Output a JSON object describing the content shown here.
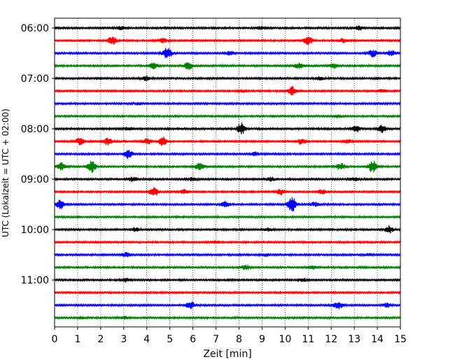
{
  "chart_data": {
    "type": "line",
    "title": "",
    "xlabel": "Zeit  [min]",
    "ylabel": "UTC (Lokalzeit = UTC + 02:00)",
    "xlim": [
      0,
      15
    ],
    "x_ticks": [
      0,
      1,
      2,
      3,
      4,
      5,
      6,
      7,
      8,
      9,
      10,
      11,
      12,
      13,
      14,
      15
    ],
    "x_tick_labels": [
      "0",
      "1",
      "2",
      "3",
      "4",
      "5",
      "6",
      "7",
      "8",
      "9",
      "10",
      "11",
      "12",
      "13",
      "14",
      "15"
    ],
    "y_tick_labels": [
      "06:00",
      "07:00",
      "08:00",
      "09:00",
      "10:00",
      "11:00"
    ],
    "row_minutes": 15,
    "grid_x": "dotted vertical lines at each minute",
    "color_cycle": [
      "#000000",
      "#ff0000",
      "#0000ff",
      "#008000"
    ],
    "rows": [
      {
        "start": "06:00",
        "color": "#000000",
        "events": [
          [
            2.9,
            0.25
          ],
          [
            8.9,
            0.2
          ],
          [
            13.2,
            0.25
          ]
        ]
      },
      {
        "start": "06:15",
        "color": "#ff0000",
        "events": [
          [
            2.5,
            0.6
          ],
          [
            4.7,
            0.3
          ],
          [
            11.0,
            0.6
          ],
          [
            12.5,
            0.25
          ]
        ]
      },
      {
        "start": "06:30",
        "color": "#0000ff",
        "events": [
          [
            4.9,
            0.8
          ],
          [
            7.6,
            0.3
          ],
          [
            13.8,
            0.5
          ],
          [
            14.6,
            0.4
          ]
        ]
      },
      {
        "start": "06:45",
        "color": "#008000",
        "events": [
          [
            4.3,
            0.4
          ],
          [
            5.8,
            0.5
          ],
          [
            10.6,
            0.4
          ],
          [
            12.1,
            0.35
          ]
        ]
      },
      {
        "start": "07:00",
        "color": "#000000",
        "events": [
          [
            4.0,
            0.3
          ],
          [
            11.5,
            0.25
          ]
        ]
      },
      {
        "start": "07:15",
        "color": "#ff0000",
        "events": [
          [
            8.1,
            0.2
          ],
          [
            10.3,
            0.6
          ],
          [
            14.2,
            0.2
          ]
        ]
      },
      {
        "start": "07:30",
        "color": "#0000ff",
        "events": [
          [
            3.6,
            0.15
          ]
        ]
      },
      {
        "start": "07:45",
        "color": "#008000",
        "events": [
          [
            12.3,
            0.2
          ]
        ]
      },
      {
        "start": "08:00",
        "color": "#000000",
        "events": [
          [
            8.1,
            0.8
          ],
          [
            13.1,
            0.4
          ],
          [
            14.2,
            0.5
          ],
          [
            3.2,
            0.2
          ]
        ]
      },
      {
        "start": "08:15",
        "color": "#ff0000",
        "events": [
          [
            1.1,
            0.5
          ],
          [
            2.3,
            0.5
          ],
          [
            4.0,
            0.4
          ],
          [
            4.7,
            0.6
          ],
          [
            10.7,
            0.4
          ],
          [
            12.7,
            0.3
          ]
        ]
      },
      {
        "start": "08:30",
        "color": "#0000ff",
        "events": [
          [
            3.2,
            0.6
          ],
          [
            8.7,
            0.25
          ]
        ]
      },
      {
        "start": "08:45",
        "color": "#008000",
        "events": [
          [
            0.3,
            0.5
          ],
          [
            1.6,
            0.8
          ],
          [
            6.3,
            0.5
          ],
          [
            12.4,
            0.5
          ],
          [
            13.8,
            0.8
          ]
        ]
      },
      {
        "start": "09:00",
        "color": "#000000",
        "events": [
          [
            3.4,
            0.3
          ],
          [
            6.0,
            0.25
          ],
          [
            9.4,
            0.25
          ],
          [
            13.0,
            0.25
          ]
        ]
      },
      {
        "start": "09:15",
        "color": "#ff0000",
        "events": [
          [
            4.3,
            0.6
          ],
          [
            5.6,
            0.3
          ],
          [
            9.8,
            0.4
          ],
          [
            11.6,
            0.3
          ]
        ]
      },
      {
        "start": "09:30",
        "color": "#0000ff",
        "events": [
          [
            0.25,
            0.6
          ],
          [
            7.4,
            0.35
          ],
          [
            10.3,
            1.0
          ],
          [
            11.3,
            0.3
          ]
        ]
      },
      {
        "start": "09:45",
        "color": "#008000",
        "events": []
      },
      {
        "start": "10:00",
        "color": "#000000",
        "events": [
          [
            3.5,
            0.25
          ],
          [
            9.3,
            0.2
          ],
          [
            14.5,
            0.5
          ]
        ]
      },
      {
        "start": "10:15",
        "color": "#ff0000",
        "events": [
          [
            7.0,
            0.15
          ]
        ]
      },
      {
        "start": "10:30",
        "color": "#0000ff",
        "events": [
          [
            3.1,
            0.3
          ],
          [
            9.1,
            0.2
          ],
          [
            13.6,
            0.2
          ]
        ]
      },
      {
        "start": "10:45",
        "color": "#008000",
        "events": [
          [
            8.3,
            0.3
          ],
          [
            11.2,
            0.25
          ]
        ]
      },
      {
        "start": "11:00",
        "color": "#000000",
        "events": [
          [
            3.1,
            0.25
          ],
          [
            10.8,
            0.2
          ]
        ]
      },
      {
        "start": "11:15",
        "color": "#ff0000",
        "events": []
      },
      {
        "start": "11:30",
        "color": "#0000ff",
        "events": [
          [
            5.9,
            0.5
          ],
          [
            12.3,
            0.5
          ],
          [
            14.4,
            0.3
          ]
        ]
      },
      {
        "start": "11:45",
        "color": "#008000",
        "events": [
          [
            1.2,
            0.15
          ],
          [
            3.0,
            0.2
          ]
        ]
      }
    ]
  }
}
